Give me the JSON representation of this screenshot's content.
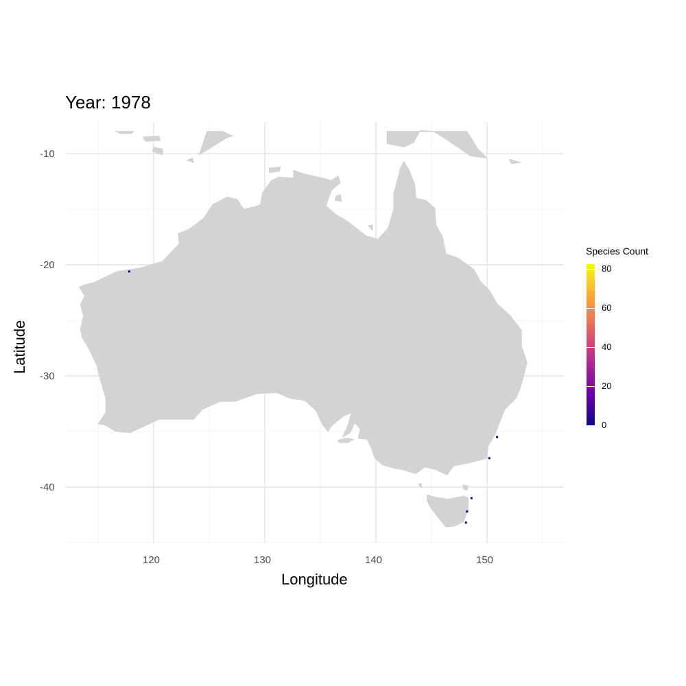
{
  "title": "Year: 1978",
  "chart_data": {
    "type": "heatmap",
    "title": "Year: 1978",
    "xlabel": "Longitude",
    "ylabel": "Latitude",
    "xlim": [
      112.5,
      157.5
    ],
    "ylim": [
      -45.5,
      -8
    ],
    "x_ticks": [
      "120",
      "130",
      "140",
      "150"
    ],
    "y_ticks": [
      "-10",
      "-20",
      "-30",
      "-40"
    ],
    "grid": true,
    "legend": {
      "title": "Species Count",
      "placement": "right",
      "ticks": [
        "0",
        "20",
        "40",
        "60",
        "80"
      ],
      "range": [
        0,
        82
      ],
      "colors": [
        "#0d0887",
        "#6a00a8",
        "#b12a90",
        "#e16462",
        "#fca636",
        "#f0f921"
      ]
    },
    "points": [
      {
        "lon": 150.9,
        "lat": -35.5,
        "count": 1
      },
      {
        "lon": 150.2,
        "lat": -37.4,
        "count": 2
      },
      {
        "lon": 148.6,
        "lat": -41.0,
        "count": 1
      },
      {
        "lon": 148.2,
        "lat": -42.2,
        "count": 1
      },
      {
        "lon": 148.1,
        "lat": -43.2,
        "count": 1
      },
      {
        "lon": 117.8,
        "lat": -20.6,
        "count": 1
      }
    ]
  }
}
